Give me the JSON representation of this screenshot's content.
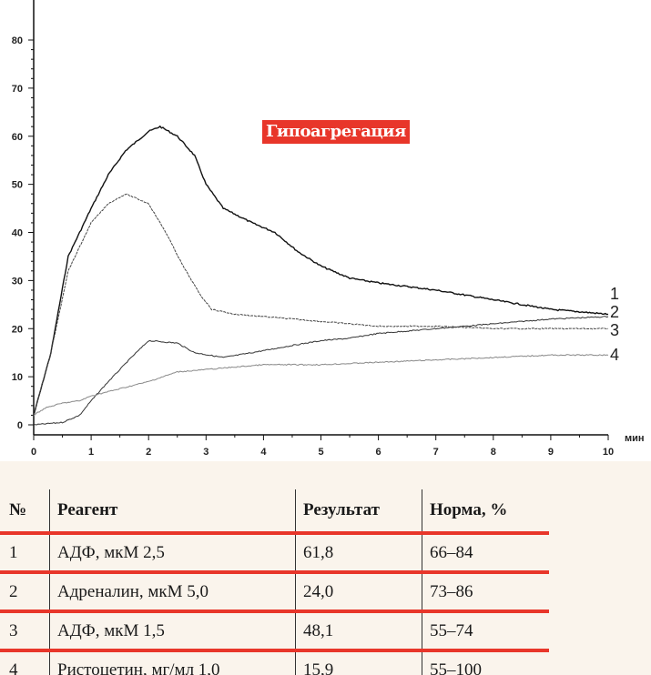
{
  "chart_data": {
    "type": "line",
    "title": "Гипоагрегация",
    "xlabel": "мин",
    "ylabel": "",
    "xlim": [
      0,
      10
    ],
    "ylim": [
      0,
      80
    ],
    "xticks": [
      "0",
      "1",
      "2",
      "3",
      "4",
      "5",
      "6",
      "7",
      "8",
      "9",
      "10"
    ],
    "yticks": [
      "0",
      "10",
      "20",
      "30",
      "40",
      "50",
      "60",
      "70",
      "80"
    ],
    "series": [
      {
        "name": "1",
        "color": "#111111",
        "x": [
          0,
          0.3,
          0.6,
          1,
          1.3,
          1.6,
          2,
          2.2,
          2.5,
          2.8,
          3,
          3.3,
          3.8,
          4.2,
          4.6,
          5,
          5.5,
          6,
          7,
          8,
          9,
          10
        ],
        "y": [
          2,
          15,
          35,
          45,
          52,
          57,
          61,
          62,
          60,
          56,
          50,
          45,
          42,
          40,
          36,
          33,
          30.5,
          29.5,
          28,
          26,
          24,
          23
        ]
      },
      {
        "name": "2",
        "color": "#333333",
        "x": [
          0,
          0.5,
          0.8,
          1,
          1.3,
          1.7,
          2,
          2.5,
          2.8,
          3.3,
          3.8,
          4.5,
          5,
          5.5,
          6,
          6.5,
          7,
          8,
          9,
          10
        ],
        "y": [
          0,
          0.5,
          2,
          5,
          9,
          14,
          17.5,
          17,
          15,
          14,
          15,
          16.5,
          17.5,
          18,
          19,
          19.5,
          20,
          21,
          22,
          22.5
        ]
      },
      {
        "name": "3",
        "color": "#444444",
        "x": [
          0,
          0.3,
          0.6,
          1,
          1.3,
          1.6,
          2,
          2.3,
          2.6,
          2.9,
          3.1,
          3.5,
          4,
          5,
          6,
          7,
          8,
          9,
          10
        ],
        "y": [
          2,
          15,
          32,
          42,
          46,
          48,
          46,
          40,
          33,
          27,
          24,
          23,
          22.5,
          21.5,
          20.5,
          20.5,
          20,
          20,
          20
        ]
      },
      {
        "name": "4",
        "color": "#888888",
        "x": [
          0,
          0.2,
          0.5,
          0.8,
          1,
          1.5,
          2,
          2.5,
          3,
          3.5,
          4,
          5,
          6,
          7,
          8,
          9,
          10
        ],
        "y": [
          2,
          3.5,
          4.5,
          5,
          6,
          7.5,
          9,
          11,
          11.5,
          12,
          12.5,
          12.5,
          13,
          13.5,
          14,
          14.5,
          14.5
        ]
      }
    ]
  },
  "table": {
    "headers": [
      "№",
      "Реагент",
      "Результат",
      "Норма, %"
    ],
    "rows": [
      [
        "1",
        "АДФ, мкМ 2,5",
        "61,8",
        "66–84"
      ],
      [
        "2",
        "Адреналин, мкМ 5,0",
        "24,0",
        "73–86"
      ],
      [
        "3",
        "АДФ, мкМ 1,5",
        "48,1",
        "55–74"
      ],
      [
        "4",
        "Ристоцетин, мг/мл 1,0",
        "15,9",
        "55–100"
      ]
    ]
  }
}
